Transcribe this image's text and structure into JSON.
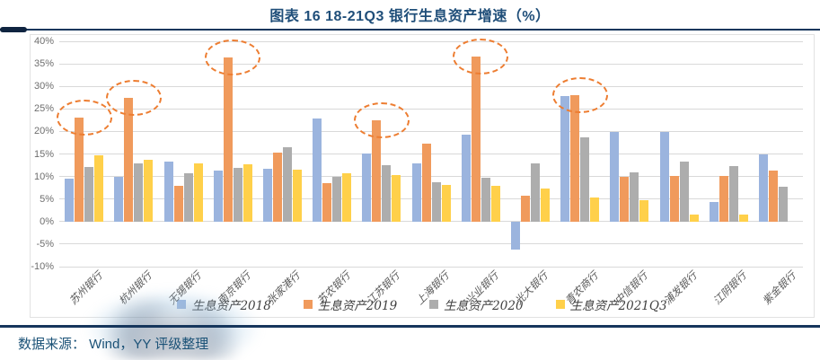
{
  "title": "图表 16 18-21Q3 银行生息资产增速（%）",
  "source_line": "数据来源： Wind，YY 评级整理",
  "colors": {
    "series": [
      "#9BB4DE",
      "#F09A5C",
      "#ADADAD",
      "#FFD04A"
    ],
    "title": "#1F4E79",
    "grid": "#D9D9D9",
    "axis_text": "#6E6E6E",
    "rule": "#16365C",
    "annotation_circle": "#ED7D31",
    "source_text": "#1B5277"
  },
  "chart_data": {
    "type": "bar",
    "title": "图表 16 18-21Q3 银行生息资产增速（%）",
    "xlabel": "",
    "ylabel": "",
    "ylim": [
      -10,
      40
    ],
    "ytick_step": 5,
    "ytick_format": "percent",
    "grid": true,
    "legend_position": "bottom",
    "categories": [
      "苏州银行",
      "杭州银行",
      "无锡银行",
      "南京银行",
      "张家港行",
      "苏农银行",
      "江苏银行",
      "上海银行",
      "兴业银行",
      "光大银行",
      "青农商行",
      "中信银行",
      "浦发银行",
      "江阴银行",
      "紫金银行"
    ],
    "series": [
      {
        "name": "生息资产2018",
        "values": [
          9.5,
          10.0,
          13.3,
          11.3,
          11.7,
          22.9,
          15.1,
          12.9,
          19.2,
          -6.2,
          27.9,
          19.9,
          19.9,
          4.4,
          14.9
        ]
      },
      {
        "name": "生息资产2019",
        "values": [
          23.0,
          27.5,
          8.0,
          36.4,
          15.3,
          8.6,
          22.5,
          17.3,
          36.6,
          5.8,
          28.1,
          10.0,
          10.1,
          10.1,
          11.3
        ]
      },
      {
        "name": "生息资产2020",
        "values": [
          12.2,
          12.9,
          10.8,
          11.9,
          16.5,
          10.0,
          12.5,
          8.8,
          9.8,
          12.9,
          18.7,
          10.9,
          13.3,
          12.3,
          7.8
        ]
      },
      {
        "name": "生息资产2021Q3",
        "values": [
          14.8,
          13.7,
          13.0,
          12.8,
          11.5,
          10.7,
          10.3,
          8.2,
          8.0,
          7.4,
          5.3,
          4.8,
          1.5,
          1.5,
          0
        ]
      }
    ],
    "annotations": {
      "style": "dashed-ellipse",
      "highlighted_series": "生息资产2019",
      "circled_categories": [
        "苏州银行",
        "杭州银行",
        "南京银行",
        "江苏银行",
        "兴业银行",
        "青农商行"
      ]
    }
  }
}
